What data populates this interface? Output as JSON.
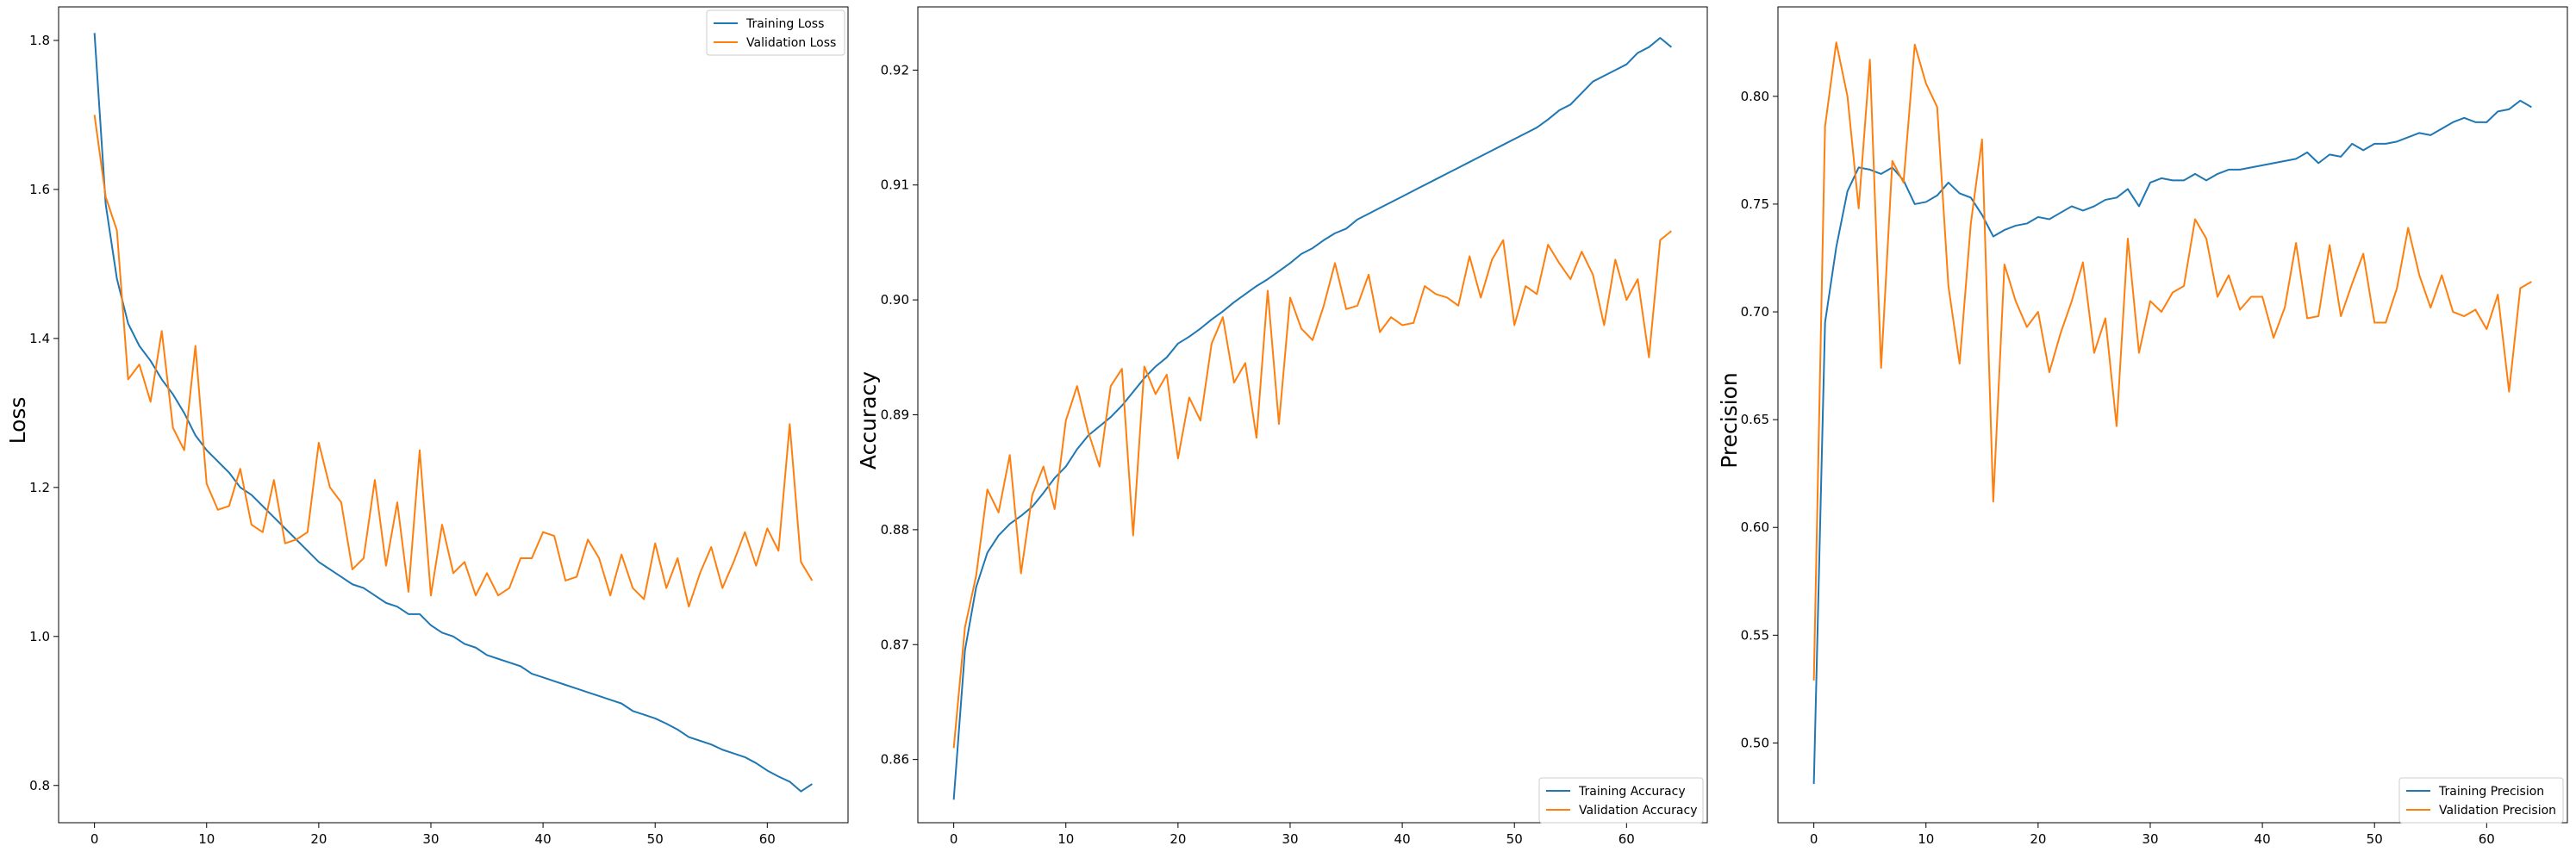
{
  "chart_data": [
    {
      "type": "line",
      "title": "",
      "xlabel": "",
      "ylabel": "Loss",
      "xlim": [
        -3.2,
        67.2
      ],
      "ylim": [
        0.75,
        1.845
      ],
      "x_ticks": [
        0,
        10,
        20,
        30,
        40,
        50,
        60
      ],
      "y_ticks": [
        0.8,
        1.0,
        1.2,
        1.4,
        1.6,
        1.8
      ],
      "y_tick_labels": [
        "0.8",
        "1.0",
        "1.2",
        "1.4",
        "1.6",
        "1.8"
      ],
      "legend": "top-right",
      "grid": false,
      "x": [
        0,
        1,
        2,
        3,
        4,
        5,
        6,
        7,
        8,
        9,
        10,
        11,
        12,
        13,
        14,
        15,
        16,
        17,
        18,
        19,
        20,
        21,
        22,
        23,
        24,
        25,
        26,
        27,
        28,
        29,
        30,
        31,
        32,
        33,
        34,
        35,
        36,
        37,
        38,
        39,
        40,
        41,
        42,
        43,
        44,
        45,
        46,
        47,
        48,
        49,
        50,
        51,
        52,
        53,
        54,
        55,
        56,
        57,
        58,
        59,
        60,
        61,
        62,
        63,
        64
      ],
      "series": [
        {
          "name": "Training Loss",
          "color": "#1f77b4",
          "values": [
            1.81,
            1.58,
            1.48,
            1.42,
            1.39,
            1.37,
            1.345,
            1.325,
            1.3,
            1.27,
            1.25,
            1.235,
            1.22,
            1.2,
            1.19,
            1.175,
            1.16,
            1.145,
            1.13,
            1.115,
            1.1,
            1.09,
            1.08,
            1.07,
            1.065,
            1.055,
            1.045,
            1.04,
            1.03,
            1.03,
            1.015,
            1.005,
            1.0,
            0.99,
            0.985,
            0.975,
            0.97,
            0.965,
            0.96,
            0.95,
            0.945,
            0.94,
            0.935,
            0.93,
            0.925,
            0.92,
            0.915,
            0.91,
            0.9,
            0.895,
            0.89,
            0.883,
            0.875,
            0.865,
            0.86,
            0.855,
            0.848,
            0.843,
            0.838,
            0.83,
            0.82,
            0.812,
            0.805,
            0.792,
            0.802
          ]
        },
        {
          "name": "Validation Loss",
          "color": "#ff7f0e",
          "values": [
            1.7,
            1.59,
            1.545,
            1.345,
            1.365,
            1.315,
            1.41,
            1.28,
            1.25,
            1.39,
            1.205,
            1.17,
            1.175,
            1.225,
            1.15,
            1.14,
            1.21,
            1.125,
            1.13,
            1.14,
            1.26,
            1.2,
            1.18,
            1.09,
            1.105,
            1.21,
            1.095,
            1.18,
            1.06,
            1.25,
            1.055,
            1.15,
            1.085,
            1.1,
            1.055,
            1.085,
            1.055,
            1.065,
            1.105,
            1.105,
            1.14,
            1.135,
            1.075,
            1.08,
            1.13,
            1.105,
            1.055,
            1.11,
            1.065,
            1.05,
            1.125,
            1.065,
            1.105,
            1.04,
            1.085,
            1.12,
            1.065,
            1.1,
            1.14,
            1.095,
            1.145,
            1.115,
            1.285,
            1.1,
            1.075
          ]
        }
      ]
    },
    {
      "type": "line",
      "title": "",
      "xlabel": "",
      "ylabel": "Accuracy",
      "xlim": [
        -3.2,
        67.2
      ],
      "ylim": [
        0.8545,
        0.9255
      ],
      "x_ticks": [
        0,
        10,
        20,
        30,
        40,
        50,
        60
      ],
      "y_ticks": [
        0.86,
        0.87,
        0.88,
        0.89,
        0.9,
        0.91,
        0.92
      ],
      "y_tick_labels": [
        "0.86",
        "0.87",
        "0.88",
        "0.89",
        "0.90",
        "0.91",
        "0.92"
      ],
      "legend": "bottom-right",
      "grid": false,
      "x": [
        0,
        1,
        2,
        3,
        4,
        5,
        6,
        7,
        8,
        9,
        10,
        11,
        12,
        13,
        14,
        15,
        16,
        17,
        18,
        19,
        20,
        21,
        22,
        23,
        24,
        25,
        26,
        27,
        28,
        29,
        30,
        31,
        32,
        33,
        34,
        35,
        36,
        37,
        38,
        39,
        40,
        41,
        42,
        43,
        44,
        45,
        46,
        47,
        48,
        49,
        50,
        51,
        52,
        53,
        54,
        55,
        56,
        57,
        58,
        59,
        60,
        61,
        62,
        63,
        64
      ],
      "series": [
        {
          "name": "Training Accuracy",
          "color": "#1f77b4",
          "values": [
            0.8565,
            0.8695,
            0.875,
            0.878,
            0.8795,
            0.8805,
            0.8812,
            0.882,
            0.8832,
            0.8845,
            0.8855,
            0.887,
            0.8882,
            0.889,
            0.8898,
            0.8908,
            0.892,
            0.8932,
            0.8942,
            0.895,
            0.8962,
            0.8968,
            0.8975,
            0.8983,
            0.899,
            0.8998,
            0.9005,
            0.9012,
            0.9018,
            0.9025,
            0.9032,
            0.904,
            0.9045,
            0.9052,
            0.9058,
            0.9062,
            0.907,
            0.9075,
            0.908,
            0.9085,
            0.909,
            0.9095,
            0.91,
            0.9105,
            0.911,
            0.9115,
            0.912,
            0.9125,
            0.913,
            0.9135,
            0.914,
            0.9145,
            0.915,
            0.9157,
            0.9165,
            0.917,
            0.918,
            0.919,
            0.9195,
            0.92,
            0.9205,
            0.9215,
            0.922,
            0.9228,
            0.922
          ]
        },
        {
          "name": "Validation Accuracy",
          "color": "#ff7f0e",
          "values": [
            0.861,
            0.8715,
            0.876,
            0.8835,
            0.8815,
            0.8865,
            0.8762,
            0.883,
            0.8855,
            0.8818,
            0.8895,
            0.8925,
            0.8885,
            0.8855,
            0.8925,
            0.894,
            0.8795,
            0.8942,
            0.8918,
            0.8935,
            0.8862,
            0.8915,
            0.8895,
            0.8962,
            0.8985,
            0.8928,
            0.8945,
            0.888,
            0.9008,
            0.8892,
            0.9002,
            0.8975,
            0.8965,
            0.8995,
            0.9032,
            0.8992,
            0.8995,
            0.9022,
            0.8972,
            0.8985,
            0.8978,
            0.898,
            0.9012,
            0.9005,
            0.9002,
            0.8995,
            0.9038,
            0.9002,
            0.9035,
            0.9052,
            0.8978,
            0.9012,
            0.9005,
            0.9048,
            0.9032,
            0.9018,
            0.9042,
            0.9022,
            0.8978,
            0.9035,
            0.9,
            0.9018,
            0.895,
            0.9052,
            0.906
          ]
        }
      ]
    },
    {
      "type": "line",
      "title": "",
      "xlabel": "",
      "ylabel": "Precision",
      "xlim": [
        -3.2,
        67.2
      ],
      "ylim": [
        0.463,
        0.8415
      ],
      "x_ticks": [
        0,
        10,
        20,
        30,
        40,
        50,
        60
      ],
      "y_ticks": [
        0.5,
        0.55,
        0.6,
        0.65,
        0.7,
        0.75,
        0.8
      ],
      "y_tick_labels": [
        "0.50",
        "0.55",
        "0.60",
        "0.65",
        "0.70",
        "0.75",
        "0.80"
      ],
      "legend": "bottom-right",
      "grid": false,
      "x": [
        0,
        1,
        2,
        3,
        4,
        5,
        6,
        7,
        8,
        9,
        10,
        11,
        12,
        13,
        14,
        15,
        16,
        17,
        18,
        19,
        20,
        21,
        22,
        23,
        24,
        25,
        26,
        27,
        28,
        29,
        30,
        31,
        32,
        33,
        34,
        35,
        36,
        37,
        38,
        39,
        40,
        41,
        42,
        43,
        44,
        45,
        46,
        47,
        48,
        49,
        50,
        51,
        52,
        53,
        54,
        55,
        56,
        57,
        58,
        59,
        60,
        61,
        62,
        63,
        64
      ],
      "series": [
        {
          "name": "Training Precision",
          "color": "#1f77b4",
          "values": [
            0.481,
            0.695,
            0.73,
            0.756,
            0.767,
            0.766,
            0.764,
            0.767,
            0.761,
            0.75,
            0.751,
            0.754,
            0.76,
            0.755,
            0.753,
            0.745,
            0.735,
            0.738,
            0.74,
            0.741,
            0.744,
            0.743,
            0.746,
            0.749,
            0.747,
            0.749,
            0.752,
            0.753,
            0.757,
            0.749,
            0.76,
            0.762,
            0.761,
            0.761,
            0.764,
            0.761,
            0.764,
            0.766,
            0.766,
            0.767,
            0.768,
            0.769,
            0.77,
            0.771,
            0.774,
            0.769,
            0.773,
            0.772,
            0.778,
            0.775,
            0.778,
            0.778,
            0.779,
            0.781,
            0.783,
            0.782,
            0.785,
            0.788,
            0.79,
            0.788,
            0.788,
            0.793,
            0.794,
            0.798,
            0.795
          ]
        },
        {
          "name": "Validation Precision",
          "color": "#ff7f0e",
          "values": [
            0.529,
            0.786,
            0.825,
            0.8,
            0.748,
            0.817,
            0.674,
            0.77,
            0.76,
            0.824,
            0.806,
            0.795,
            0.712,
            0.676,
            0.741,
            0.78,
            0.612,
            0.722,
            0.705,
            0.693,
            0.7,
            0.672,
            0.69,
            0.705,
            0.723,
            0.681,
            0.697,
            0.647,
            0.734,
            0.681,
            0.705,
            0.7,
            0.709,
            0.712,
            0.743,
            0.734,
            0.707,
            0.717,
            0.701,
            0.707,
            0.707,
            0.688,
            0.702,
            0.732,
            0.697,
            0.698,
            0.731,
            0.698,
            0.713,
            0.727,
            0.695,
            0.695,
            0.711,
            0.739,
            0.717,
            0.702,
            0.717,
            0.7,
            0.698,
            0.701,
            0.692,
            0.708,
            0.663,
            0.711,
            0.714
          ]
        }
      ]
    }
  ]
}
